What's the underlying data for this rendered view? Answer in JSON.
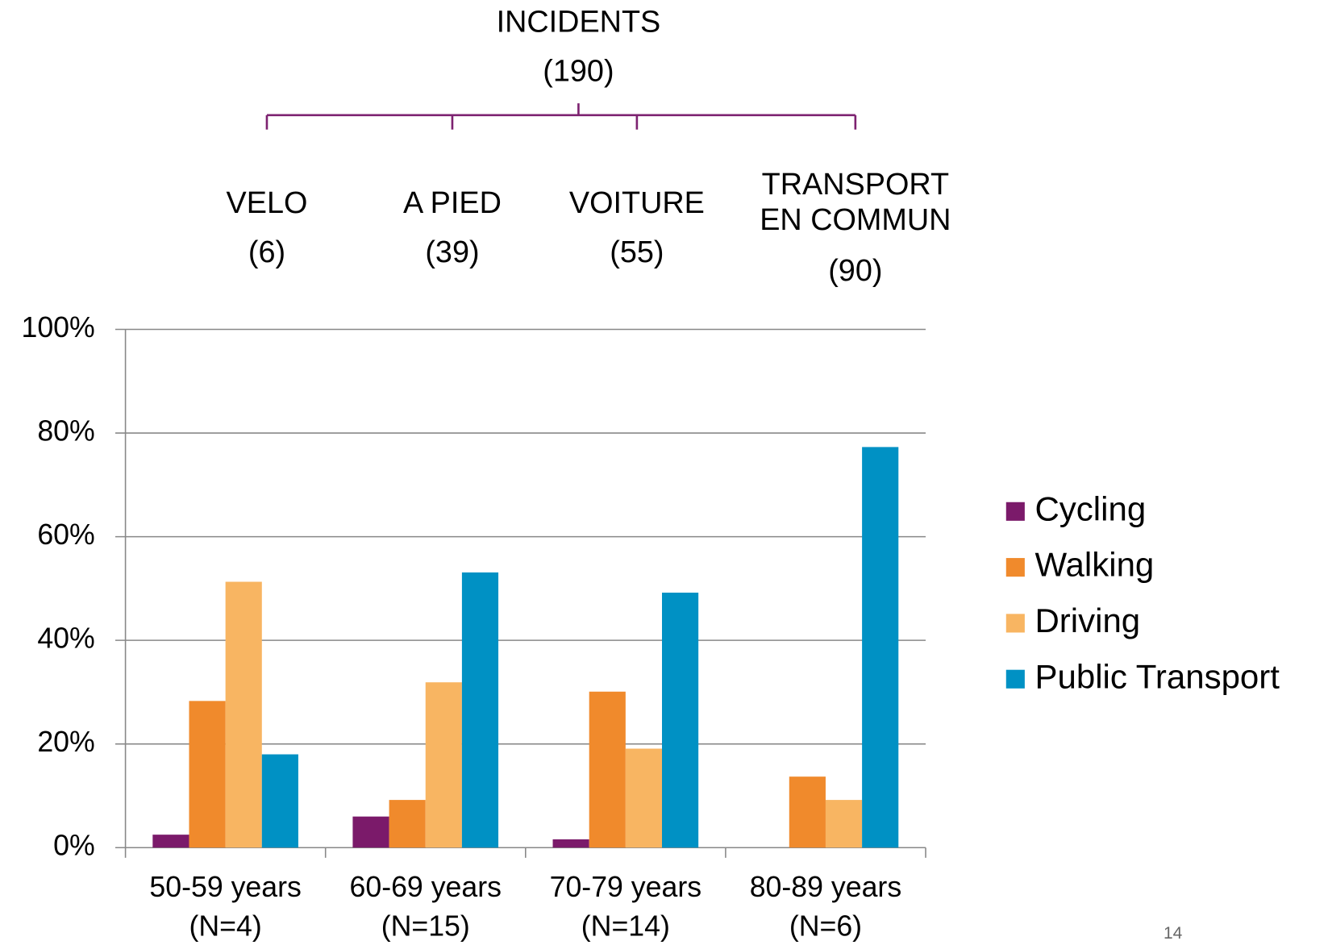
{
  "tree": {
    "title": "INCIDENTS",
    "total": "(190)",
    "branches": [
      {
        "label": [
          "VELO"
        ],
        "count": "(6)"
      },
      {
        "label": [
          "A PIED"
        ],
        "count": "(39)"
      },
      {
        "label": [
          "VOITURE"
        ],
        "count": "(55)"
      },
      {
        "label": [
          "TRANSPORT",
          "EN COMMUN"
        ],
        "count": "(90)"
      }
    ]
  },
  "page_number": "14",
  "chart_data": {
    "type": "bar",
    "categories": [
      [
        "50-59 years",
        "(N=4)"
      ],
      [
        "60-69 years",
        "(N=15)"
      ],
      [
        "70-79 years",
        "(N=14)"
      ],
      [
        "80-89 years",
        "(N=6)"
      ]
    ],
    "series": [
      {
        "name": "Cycling",
        "color": "#7b1a6a",
        "values": [
          2.5,
          6.0,
          1.6,
          0
        ]
      },
      {
        "name": "Walking",
        "color": "#f08a2c",
        "values": [
          28.3,
          9.2,
          30.1,
          13.7
        ]
      },
      {
        "name": "Driving",
        "color": "#f8b562",
        "values": [
          51.3,
          31.9,
          19.1,
          9.2
        ]
      },
      {
        "name": "Public Transport",
        "color": "#0091c4",
        "values": [
          18.0,
          53.1,
          49.2,
          77.3
        ]
      }
    ],
    "ylim": [
      0,
      100
    ],
    "yticks": [
      {
        "value": 0,
        "label": "0%"
      },
      {
        "value": 20,
        "label": "20%"
      },
      {
        "value": 40,
        "label": "40%"
      },
      {
        "value": 60,
        "label": "60%"
      },
      {
        "value": 80,
        "label": "80%"
      },
      {
        "value": 100,
        "label": "100%"
      }
    ],
    "grid": true,
    "legend": "right"
  }
}
